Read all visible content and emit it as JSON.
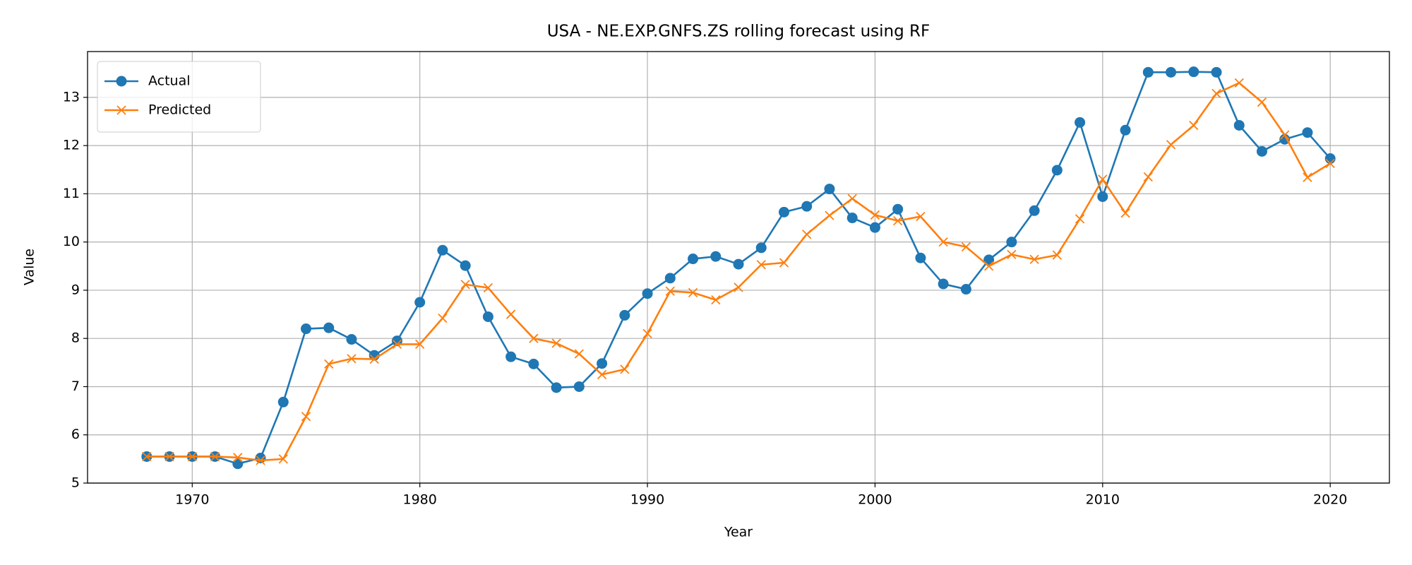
{
  "chart_data": {
    "type": "line",
    "title": "USA - NE.EXP.GNFS.ZS rolling forecast using RF",
    "x_label": "Year",
    "y_label": "Value",
    "x": [
      1968,
      1969,
      1970,
      1971,
      1972,
      1973,
      1974,
      1975,
      1976,
      1977,
      1978,
      1979,
      1980,
      1981,
      1982,
      1983,
      1984,
      1985,
      1986,
      1987,
      1988,
      1989,
      1990,
      1991,
      1992,
      1993,
      1994,
      1995,
      1996,
      1997,
      1998,
      1999,
      2000,
      2001,
      2002,
      2003,
      2004,
      2005,
      2006,
      2007,
      2008,
      2009,
      2010,
      2011,
      2012,
      2013,
      2014,
      2015,
      2016,
      2017,
      2018,
      2019,
      2020
    ],
    "series": [
      {
        "name": "Actual",
        "color": "#1f77b4",
        "marker": "o",
        "values": [
          5.55,
          5.55,
          5.55,
          5.55,
          5.4,
          5.52,
          6.68,
          8.2,
          8.22,
          7.98,
          7.65,
          7.95,
          8.75,
          9.83,
          9.51,
          8.45,
          7.62,
          7.47,
          6.98,
          7.0,
          7.48,
          8.48,
          8.93,
          9.25,
          9.65,
          9.7,
          9.54,
          9.88,
          10.62,
          10.74,
          11.1,
          10.5,
          10.3,
          10.68,
          9.67,
          9.13,
          9.02,
          9.63,
          10.0,
          10.65,
          11.49,
          12.48,
          10.94,
          12.32,
          13.52,
          13.52,
          13.53,
          13.52,
          12.42,
          11.88,
          12.13,
          12.27,
          11.73
        ]
      },
      {
        "name": "Predicted",
        "color": "#ff7f0e",
        "marker": "x",
        "values": [
          5.55,
          5.55,
          5.55,
          5.55,
          5.53,
          5.47,
          5.5,
          6.38,
          7.47,
          7.58,
          7.57,
          7.88,
          7.88,
          8.42,
          9.12,
          9.05,
          8.5,
          8.0,
          7.9,
          7.68,
          7.25,
          7.36,
          8.1,
          8.98,
          8.95,
          8.8,
          9.06,
          9.53,
          9.57,
          10.16,
          10.55,
          10.9,
          10.56,
          10.44,
          10.53,
          10.0,
          9.9,
          9.5,
          9.74,
          9.64,
          9.73,
          10.48,
          11.3,
          10.6,
          11.35,
          12.02,
          12.42,
          13.08,
          13.3,
          12.9,
          12.22,
          11.34,
          11.63
        ]
      }
    ],
    "xlim": [
      1965.4,
      2022.6
    ],
    "xticks": [
      1970,
      1980,
      1990,
      2000,
      2010,
      2020
    ],
    "ylim": [
      5,
      13.95
    ],
    "yticks": [
      5,
      6,
      7,
      8,
      9,
      10,
      11,
      12,
      13
    ],
    "grid": true,
    "legend": "upper left"
  }
}
